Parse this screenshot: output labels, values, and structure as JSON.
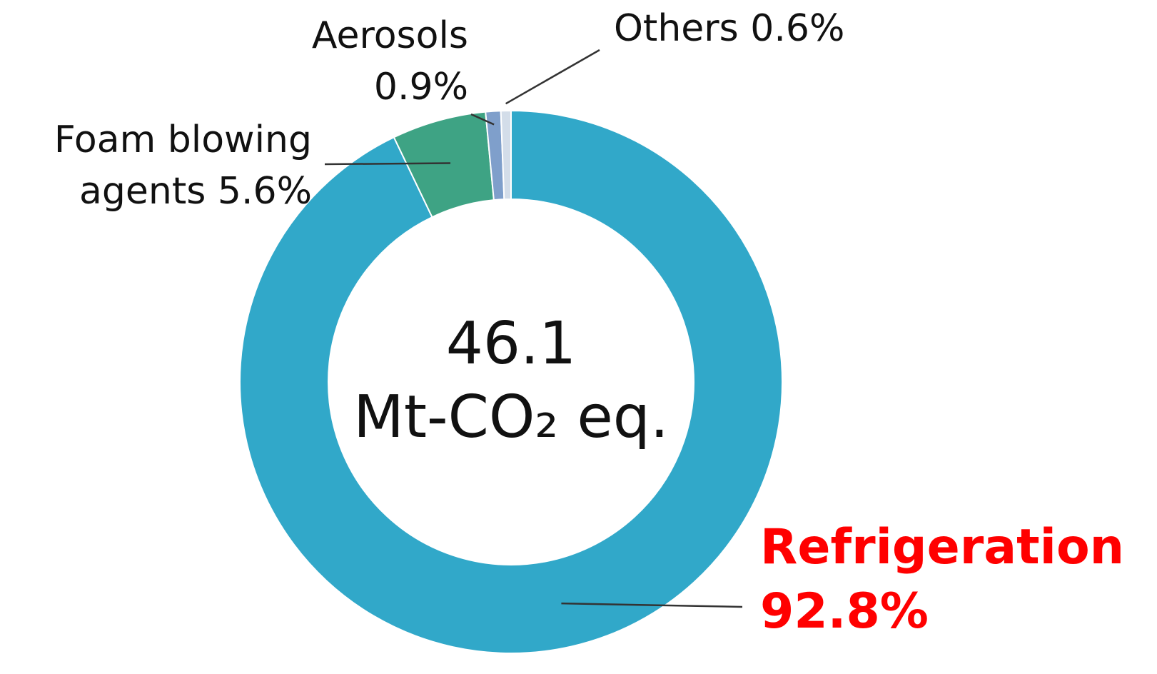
{
  "chart_data": {
    "type": "donut",
    "categories": [
      "Refrigeration",
      "Foam blowing agents",
      "Aerosols",
      "Others"
    ],
    "values": [
      92.8,
      5.6,
      0.9,
      0.6
    ],
    "value_labels": [
      "92.8%",
      "5.6%",
      "0.9%",
      "0.6%"
    ],
    "colors": [
      "#31a8c9",
      "#3ea384",
      "#7f9fcb",
      "#d3dde9"
    ],
    "center_value": "46.1",
    "center_unit": "Mt-CO₂ eq."
  }
}
